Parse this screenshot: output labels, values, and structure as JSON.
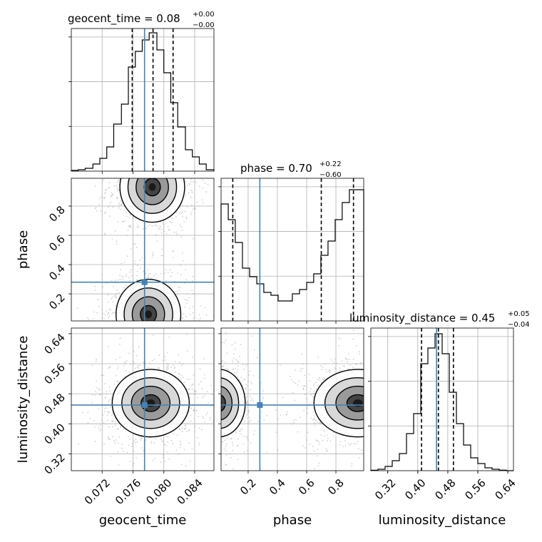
{
  "chart_data": {
    "type": "corner",
    "parameters": [
      "geocent_time",
      "phase",
      "luminosity_distance"
    ],
    "truths": {
      "geocent_time": 0.0775,
      "phase": 0.28,
      "luminosity_distance": 0.45
    },
    "colors": {
      "truth": "#4682b4",
      "histogram": "#000000",
      "density": "#000000",
      "grid": "#b0b0b0"
    },
    "titles": [
      {
        "main": "geocent_time = 0.08",
        "sup": "+0.00",
        "sub": "−0.00"
      },
      {
        "main": "phase = 0.70",
        "sup": "+0.22",
        "sub": "−0.60"
      },
      {
        "main": "luminosity_distance = 0.45",
        "sup": "+0.05",
        "sub": "−0.04"
      }
    ],
    "xlabels": [
      "geocent_time",
      "phase",
      "luminosity_distance"
    ],
    "ylabels": [
      "phase",
      "luminosity_distance"
    ],
    "ticks": {
      "geocent_time": [
        0.072,
        0.076,
        0.08,
        0.084
      ],
      "phase": [
        0.2,
        0.4,
        0.6,
        0.8
      ],
      "luminosity_distance": [
        0.32,
        0.4,
        0.48,
        0.56,
        0.64
      ]
    },
    "tick_labels": {
      "geocent_time": [
        "0.072",
        "0.076",
        "0.080",
        "0.084"
      ],
      "phase": [
        "0.2",
        "0.4",
        "0.6",
        "0.8"
      ],
      "luminosity_distance": [
        "0.32",
        "0.40",
        "0.48",
        "0.56",
        "0.64"
      ]
    },
    "ranges": {
      "geocent_time": [
        0.068,
        0.0865
      ],
      "phase": [
        0.015,
        0.99
      ],
      "luminosity_distance": [
        0.275,
        0.655
      ]
    },
    "quantiles": {
      "geocent_time": [
        0.0759,
        0.0786,
        0.0812
      ],
      "phase": [
        0.095,
        0.7,
        0.92
      ],
      "luminosity_distance": [
        0.41,
        0.455,
        0.495
      ]
    },
    "histograms": {
      "geocent_time": {
        "edges": [
          0.068,
          0.0689,
          0.0698,
          0.0708,
          0.0717,
          0.0726,
          0.0735,
          0.0745,
          0.0754,
          0.0763,
          0.0772,
          0.0781,
          0.0791,
          0.08,
          0.0809,
          0.0818,
          0.0828,
          0.0837,
          0.0846,
          0.0855,
          0.0865
        ],
        "counts": [
          0.005,
          0.01,
          0.02,
          0.05,
          0.09,
          0.17,
          0.33,
          0.47,
          0.73,
          0.84,
          0.92,
          0.97,
          0.85,
          0.69,
          0.48,
          0.31,
          0.15,
          0.1,
          0.05,
          0.01
        ]
      },
      "phase": {
        "edges": [
          0.015,
          0.064,
          0.112,
          0.161,
          0.21,
          0.259,
          0.307,
          0.356,
          0.405,
          0.453,
          0.502,
          0.551,
          0.6,
          0.648,
          0.697,
          0.746,
          0.795,
          0.843,
          0.892,
          0.941,
          0.99
        ],
        "counts": [
          0.82,
          0.71,
          0.55,
          0.37,
          0.31,
          0.26,
          0.2,
          0.18,
          0.14,
          0.14,
          0.19,
          0.22,
          0.27,
          0.33,
          0.46,
          0.56,
          0.71,
          0.83,
          0.92,
          0.92
        ]
      },
      "luminosity_distance": {
        "edges": [
          0.275,
          0.294,
          0.313,
          0.332,
          0.351,
          0.37,
          0.389,
          0.408,
          0.427,
          0.446,
          0.465,
          0.484,
          0.503,
          0.522,
          0.541,
          0.56,
          0.579,
          0.598,
          0.617,
          0.636,
          0.655
        ],
        "counts": [
          0.003,
          0.01,
          0.03,
          0.07,
          0.12,
          0.26,
          0.4,
          0.75,
          0.86,
          0.96,
          0.82,
          0.55,
          0.33,
          0.18,
          0.09,
          0.05,
          0.02,
          0.01,
          0.004,
          0.0
        ]
      }
    },
    "density_peaks": {
      "phase_vs_geocent_time": [
        {
          "x": 0.0785,
          "y": 0.93,
          "sx": 0.0021,
          "sy": 0.12,
          "w": 1.0
        },
        {
          "x": 0.078,
          "y": 0.06,
          "sx": 0.0021,
          "sy": 0.12,
          "w": 0.9
        }
      ],
      "luminosity_distance_vs_geocent_time": [
        {
          "x": 0.0783,
          "y": 0.455,
          "sx": 0.0025,
          "sy": 0.045,
          "w": 1.0
        }
      ],
      "luminosity_distance_vs_phase": [
        {
          "x": 0.0,
          "y": 0.455,
          "sx": 0.09,
          "sy": 0.045,
          "w": 0.9
        },
        {
          "x": 0.95,
          "y": 0.455,
          "sx": 0.15,
          "sy": 0.045,
          "w": 1.0
        }
      ]
    }
  }
}
